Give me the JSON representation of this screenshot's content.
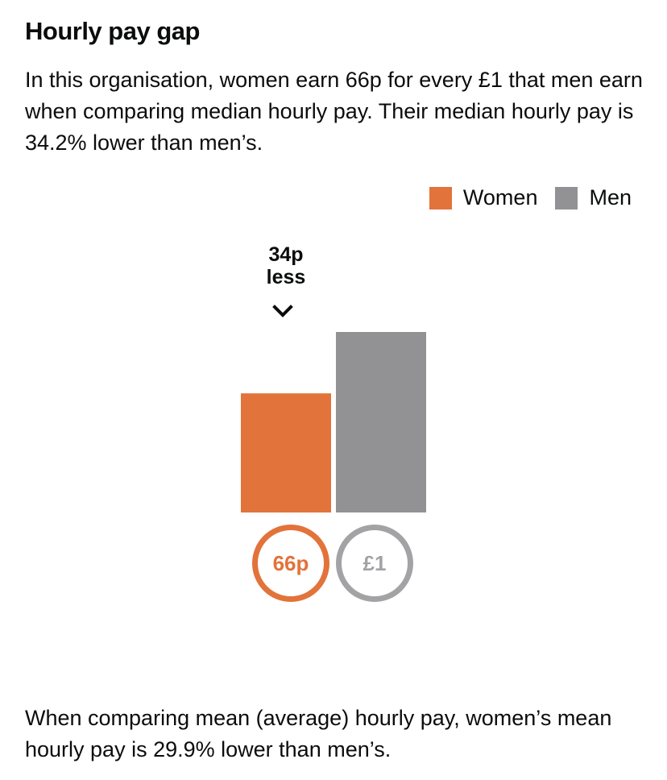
{
  "title": "Hourly pay gap",
  "summary": "In this organisation, women earn 66p for every £1 that men earn when comparing median hourly pay. Their median hourly pay is 34.2% lower than men’s.",
  "legend": {
    "women": "Women",
    "men": "Men"
  },
  "gap_label": {
    "line1": "34p",
    "line2": "less"
  },
  "badges": {
    "women": "66p",
    "men": "£1"
  },
  "mean_note": "When comparing mean (average) hourly pay, women’s mean hourly pay is 29.9% lower than men’s.",
  "colors": {
    "women": "#e2733a",
    "men": "#929295"
  },
  "chart_data": {
    "type": "bar",
    "categories": [
      "Women",
      "Men"
    ],
    "values": [
      0.66,
      1.0
    ],
    "ylim": [
      0,
      1.0
    ],
    "gap": 0.34,
    "grid": false,
    "legend_position": "top-right"
  }
}
